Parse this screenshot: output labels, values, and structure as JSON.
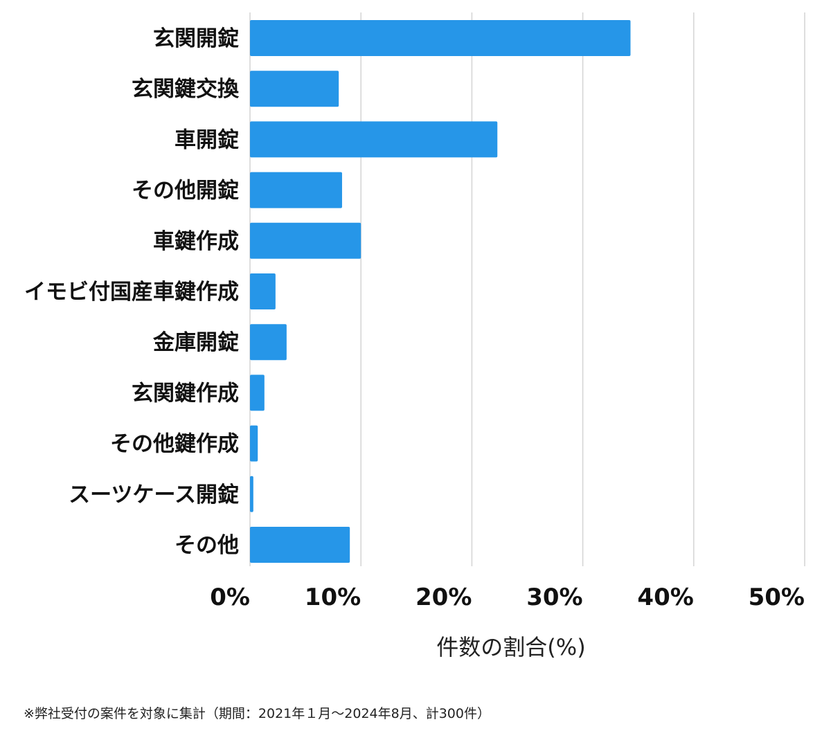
{
  "chart_data": {
    "type": "bar",
    "orientation": "horizontal",
    "categories": [
      "玄関開錠",
      "玄関鍵交換",
      "車開錠",
      "その他開錠",
      "車鍵作成",
      "イモビ付国産車鍵作成",
      "金庫開錠",
      "玄関鍵作成",
      "その他鍵作成",
      "スーツケース開錠",
      "その他"
    ],
    "series": [
      {
        "values": [
          34.3,
          8.0,
          22.3,
          8.3,
          10.0,
          2.3,
          3.3,
          1.3,
          0.7,
          0.3,
          9.0
        ]
      }
    ],
    "xlim": [
      0,
      50
    ],
    "x_ticks": [
      "0%",
      "10%",
      "20%",
      "30%",
      "40%",
      "50%"
    ],
    "x_tick_values": [
      0,
      10,
      20,
      30,
      40,
      50
    ],
    "xlabel": "件数の割合(%)",
    "grid": "vertical",
    "colors": {
      "bar": "#2696e8",
      "grid": "#d4d4d4"
    }
  },
  "footnote": "※弊社受付の案件を対象に集計（期間：2021年１月〜2024年8月、計300件）"
}
